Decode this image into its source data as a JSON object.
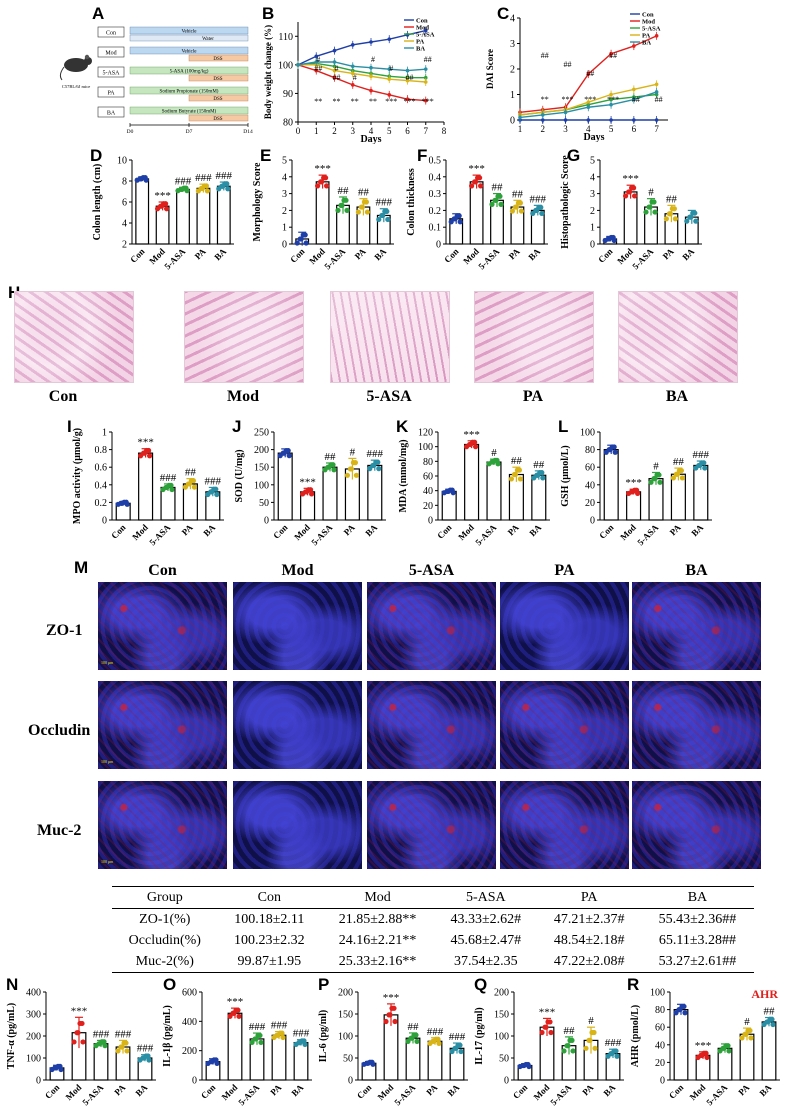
{
  "panel_letters": [
    "A",
    "B",
    "C",
    "D",
    "E",
    "F",
    "G",
    "H",
    "I",
    "J",
    "K",
    "L",
    "M",
    "N",
    "O",
    "P",
    "Q",
    "R"
  ],
  "panel_a": {
    "mouse_label": "C57BL/6J mice",
    "groups": [
      "Con",
      "Mod",
      "5-ASA",
      "PA",
      "BA"
    ],
    "bars": [
      [
        "Vehicle",
        "Water"
      ],
      [
        "Vehicle",
        "DSS"
      ],
      [
        "5-ASA (100mg/kg)",
        "DSS"
      ],
      [
        "Sodium Propionate (150mM)",
        "DSS"
      ],
      [
        "Sodium Butyrate (150mM)",
        "DSS"
      ]
    ],
    "timepoints": [
      "D0",
      "D7",
      "D14"
    ]
  },
  "panel_h": {
    "labels": [
      "Con",
      "Mod",
      "5-ASA",
      "PA",
      "BA"
    ]
  },
  "panel_m": {
    "columns": [
      "Con",
      "Mod",
      "5-ASA",
      "PA",
      "BA"
    ],
    "rows": [
      "ZO-1",
      "Occludin",
      "Muc-2"
    ],
    "scalebar": "100 μm"
  },
  "table": {
    "headers": [
      "Group",
      "Con",
      "Mod",
      "5-ASA",
      "PA",
      "BA"
    ],
    "rows": [
      [
        "ZO-1(%)",
        "100.18±2.11",
        "21.85±2.88**",
        "43.33±2.62#",
        "47.21±2.37#",
        "55.43±2.36##"
      ],
      [
        "Occludin(%)",
        "100.23±2.32",
        "24.16±2.21**",
        "45.68±2.47#",
        "48.54±2.18#",
        "65.11±3.28##"
      ],
      [
        "Muc-2(%)",
        "99.87±1.95",
        "25.33±2.16**",
        "37.54±2.35",
        "47.22±2.08#",
        "53.27±2.61##"
      ]
    ]
  },
  "colors": {
    "con": "#1f3fa8",
    "mod": "#e0201c",
    "asa": "#2ea23a",
    "pa": "#d9b416",
    "ba": "#2a8fa5",
    "bar_water": "#bcd7f0",
    "bar_dss": "#f6c9a3",
    "bar_drug": "#c6e6c0",
    "highlight": "#e0201c"
  },
  "chart_data": [
    {
      "id": "B",
      "type": "line",
      "ylabel": "Body weight change (%)",
      "xlabel": "Days",
      "x": [
        0,
        1,
        2,
        3,
        4,
        5,
        6,
        7
      ],
      "xlim": [
        0,
        8
      ],
      "ylim": [
        80,
        115
      ],
      "yticks": [
        80,
        90,
        100,
        110
      ],
      "xticks": [
        0,
        1,
        2,
        3,
        4,
        5,
        6,
        7,
        8
      ],
      "legend": [
        "Con",
        "Mod",
        "5-ASA",
        "PA",
        "BA"
      ],
      "series": [
        {
          "name": "Con",
          "values": [
            100,
            103,
            105,
            107,
            108,
            109,
            110.5,
            112
          ]
        },
        {
          "name": "Mod",
          "values": [
            100,
            98,
            95.5,
            93,
            91,
            89.5,
            88,
            87.5
          ]
        },
        {
          "name": "5-ASA",
          "values": [
            100,
            100.5,
            99.5,
            98,
            97,
            96,
            95.5,
            95.5
          ]
        },
        {
          "name": "PA",
          "values": [
            100,
            100,
            98,
            97,
            96,
            95,
            94.5,
            94
          ]
        },
        {
          "name": "BA",
          "values": [
            100,
            101,
            101,
            99.5,
            99,
            98.5,
            98,
            98.5
          ]
        }
      ],
      "annotations": [
        "**",
        "**",
        "**",
        "**",
        "***",
        "***",
        "***",
        "#",
        "#",
        "#",
        "#",
        "#",
        "##",
        "##",
        "##",
        "##"
      ]
    },
    {
      "id": "C",
      "type": "line",
      "ylabel": "DAI Score",
      "xlabel": "Days",
      "x": [
        1,
        2,
        3,
        4,
        5,
        6,
        7
      ],
      "xlim": [
        1,
        7.5
      ],
      "ylim": [
        0,
        4
      ],
      "yticks": [
        0,
        1,
        2,
        3,
        4
      ],
      "xticks": [
        1,
        2,
        3,
        4,
        5,
        6,
        7
      ],
      "legend": [
        "Con",
        "Mod",
        "5-ASA",
        "PA",
        "BA"
      ],
      "series": [
        {
          "name": "Con",
          "values": [
            0,
            0,
            0,
            0,
            0,
            0,
            0
          ]
        },
        {
          "name": "Mod",
          "values": [
            0.3,
            0.4,
            0.5,
            1.8,
            2.6,
            2.9,
            3.3
          ]
        },
        {
          "name": "5-ASA",
          "values": [
            0.2,
            0.3,
            0.4,
            0.6,
            0.8,
            0.9,
            1.0
          ]
        },
        {
          "name": "PA",
          "values": [
            0.2,
            0.3,
            0.4,
            0.7,
            1.0,
            1.2,
            1.4
          ]
        },
        {
          "name": "BA",
          "values": [
            0.1,
            0.2,
            0.3,
            0.5,
            0.6,
            0.8,
            1.1
          ]
        }
      ],
      "annotations": [
        "**",
        "***",
        "***",
        "***",
        "##",
        "##",
        "##",
        "##",
        "##",
        "##"
      ]
    },
    {
      "id": "D",
      "type": "bar",
      "ylabel": "Colon length (cm)",
      "categories": [
        "Con",
        "Mod",
        "5-ASA",
        "PA",
        "BA"
      ],
      "values": [
        8.2,
        5.6,
        7.2,
        7.3,
        7.5
      ],
      "errors": [
        0.2,
        0.4,
        0.2,
        0.4,
        0.4
      ],
      "ylim": [
        2,
        10
      ],
      "yticks": [
        2,
        4,
        6,
        8,
        10
      ],
      "annotations": [
        "",
        "***",
        "###",
        "###",
        "###"
      ]
    },
    {
      "id": "E",
      "type": "bar",
      "ylabel": "Morphology Score",
      "categories": [
        "Con",
        "Mod",
        "5-ASA",
        "PA",
        "BA"
      ],
      "values": [
        0.3,
        3.7,
        2.3,
        2.2,
        1.7
      ],
      "errors": [
        0.4,
        0.4,
        0.5,
        0.5,
        0.4
      ],
      "ylim": [
        0,
        5
      ],
      "yticks": [
        0,
        1,
        2,
        3,
        4,
        5
      ],
      "annotations": [
        "",
        "***",
        "##",
        "##",
        "###"
      ]
    },
    {
      "id": "F",
      "type": "bar",
      "ylabel": "Colon thickness",
      "categories": [
        "Con",
        "Mod",
        "5-ASA",
        "PA",
        "BA"
      ],
      "values": [
        0.15,
        0.37,
        0.26,
        0.22,
        0.2
      ],
      "errors": [
        0.03,
        0.04,
        0.04,
        0.04,
        0.03
      ],
      "ylim": [
        0,
        0.5
      ],
      "yticks": [
        0,
        0.1,
        0.2,
        0.3,
        0.4,
        0.5
      ],
      "annotations": [
        "",
        "***",
        "##",
        "##",
        "###"
      ]
    },
    {
      "id": "G",
      "type": "bar",
      "ylabel": "Histopathologic Score",
      "categories": [
        "Con",
        "Mod",
        "5-ASA",
        "PA",
        "BA"
      ],
      "values": [
        0.3,
        3.1,
        2.2,
        1.8,
        1.6
      ],
      "errors": [
        0.15,
        0.4,
        0.5,
        0.5,
        0.4
      ],
      "ylim": [
        0,
        5
      ],
      "yticks": [
        0,
        1,
        2,
        3,
        4,
        5
      ],
      "annotations": [
        "",
        "***",
        "#",
        "##",
        ""
      ]
    },
    {
      "id": "I",
      "type": "bar",
      "ylabel": "MPO activity (μmol/g)",
      "categories": [
        "Con",
        "Mod",
        "5-ASA",
        "PA",
        "BA"
      ],
      "values": [
        0.19,
        0.76,
        0.37,
        0.41,
        0.32
      ],
      "errors": [
        0.02,
        0.05,
        0.04,
        0.06,
        0.05
      ],
      "ylim": [
        0,
        1.0
      ],
      "yticks": [
        0,
        0.2,
        0.4,
        0.6,
        0.8,
        1.0
      ],
      "annotations": [
        "",
        "***",
        "###",
        "##",
        "###"
      ]
    },
    {
      "id": "J",
      "type": "bar",
      "ylabel": "SOD (U/mg)",
      "categories": [
        "Con",
        "Mod",
        "5-ASA",
        "PA",
        "BA"
      ],
      "values": [
        190,
        80,
        150,
        145,
        155
      ],
      "errors": [
        12,
        10,
        12,
        30,
        15
      ],
      "ylim": [
        0,
        250
      ],
      "yticks": [
        0,
        50,
        100,
        150,
        200,
        250
      ],
      "annotations": [
        "",
        "***",
        "##",
        "#",
        "###"
      ]
    },
    {
      "id": "K",
      "type": "bar",
      "ylabel": "MDA (mmol/mg)",
      "categories": [
        "Con",
        "Mod",
        "5-ASA",
        "PA",
        "BA"
      ],
      "values": [
        39,
        103,
        79,
        62,
        61
      ],
      "errors": [
        3,
        5,
        4,
        10,
        6
      ],
      "ylim": [
        0,
        120
      ],
      "yticks": [
        0,
        20,
        40,
        60,
        80,
        100,
        120
      ],
      "annotations": [
        "",
        "***",
        "#",
        "##",
        "##"
      ]
    },
    {
      "id": "L",
      "type": "bar",
      "ylabel": "GSH (μmol/L)",
      "categories": [
        "Con",
        "Mod",
        "5-ASA",
        "PA",
        "BA"
      ],
      "values": [
        80,
        32,
        47,
        52,
        62
      ],
      "errors": [
        5,
        3,
        7,
        7,
        5
      ],
      "ylim": [
        0,
        100
      ],
      "yticks": [
        0,
        20,
        40,
        60,
        80,
        100
      ],
      "annotations": [
        "",
        "***",
        "#",
        "##",
        "###"
      ]
    },
    {
      "id": "N",
      "type": "bar",
      "ylabel": "TNF-α (pg/mL)",
      "categories": [
        "Con",
        "Mod",
        "5-ASA",
        "PA",
        "BA"
      ],
      "values": [
        55,
        215,
        165,
        150,
        100
      ],
      "errors": [
        12,
        70,
        15,
        30,
        15
      ],
      "ylim": [
        0,
        400
      ],
      "yticks": [
        0,
        100,
        200,
        300,
        400
      ],
      "annotations": [
        "",
        "***",
        "###",
        "###",
        "###"
      ]
    },
    {
      "id": "O",
      "type": "bar",
      "ylabel": "IL-1β (pg/mL)",
      "categories": [
        "Con",
        "Mod",
        "5-ASA",
        "PA",
        "BA"
      ],
      "values": [
        125,
        455,
        280,
        305,
        255
      ],
      "errors": [
        20,
        35,
        40,
        25,
        20
      ],
      "ylim": [
        0,
        600
      ],
      "yticks": [
        0,
        200,
        400,
        600
      ],
      "annotations": [
        "",
        "***",
        "###",
        "###",
        "###"
      ]
    },
    {
      "id": "P",
      "type": "bar",
      "ylabel": "IL-6 (pg/ml)",
      "categories": [
        "Con",
        "Mod",
        "5-ASA",
        "PA",
        "BA"
      ],
      "values": [
        38,
        148,
        95,
        88,
        72
      ],
      "errors": [
        4,
        25,
        12,
        8,
        12
      ],
      "ylim": [
        0,
        200
      ],
      "yticks": [
        0,
        50,
        100,
        150,
        200
      ],
      "annotations": [
        "",
        "***",
        "##",
        "###",
        "###"
      ]
    },
    {
      "id": "Q",
      "type": "bar",
      "ylabel": "IL-17 (pg/ml)",
      "categories": [
        "Con",
        "Mod",
        "5-ASA",
        "PA",
        "BA"
      ],
      "values": [
        33,
        120,
        78,
        90,
        60
      ],
      "errors": [
        4,
        20,
        20,
        30,
        10
      ],
      "ylim": [
        0,
        200
      ],
      "yticks": [
        0,
        50,
        100,
        150,
        200
      ],
      "annotations": [
        "",
        "***",
        "##",
        "#",
        "###"
      ]
    },
    {
      "id": "R",
      "type": "bar",
      "ylabel": "AHR (pmol/L)",
      "title": "AHR",
      "categories": [
        "Con",
        "Mod",
        "5-ASA",
        "PA",
        "BA"
      ],
      "values": [
        80,
        28,
        36,
        52,
        66
      ],
      "errors": [
        6,
        4,
        5,
        7,
        5
      ],
      "ylim": [
        0,
        100
      ],
      "yticks": [
        0,
        20,
        40,
        60,
        80,
        100
      ],
      "annotations": [
        "",
        "***",
        "",
        "#",
        "##"
      ]
    }
  ]
}
